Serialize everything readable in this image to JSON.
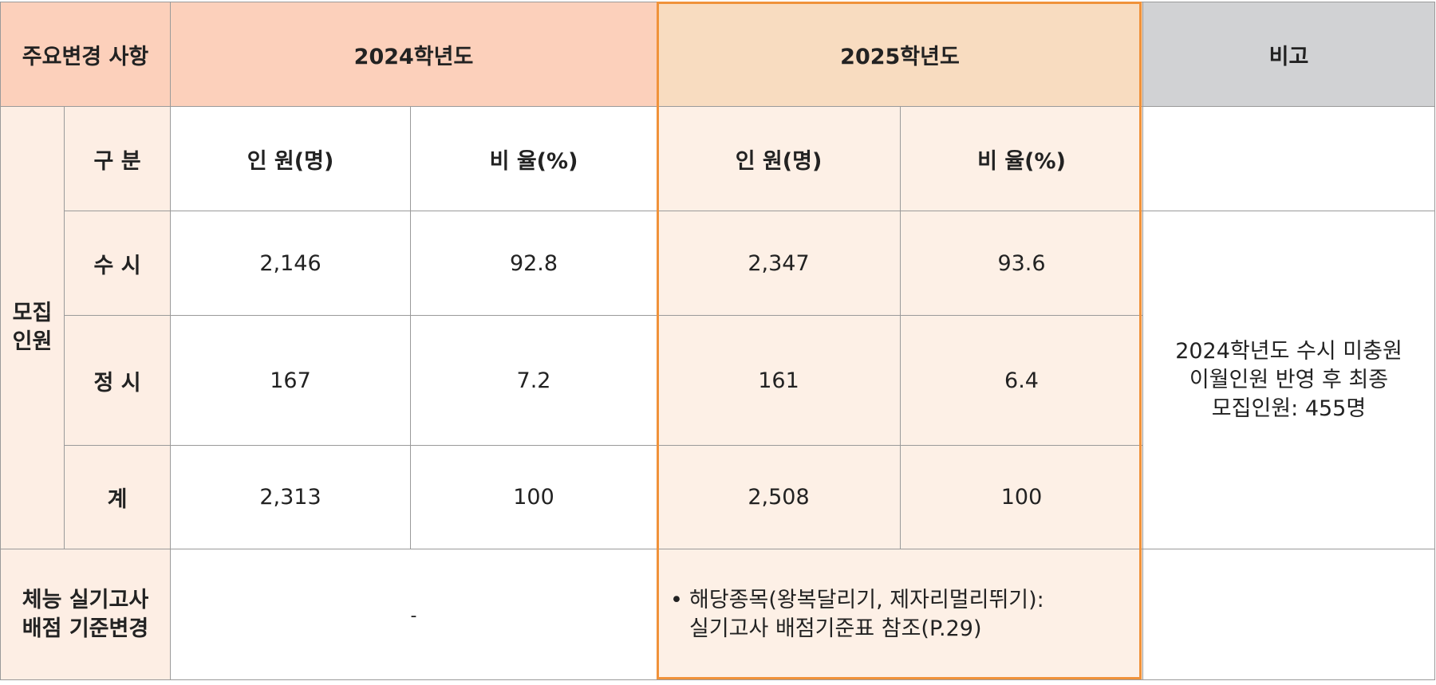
{
  "header": {
    "changes": "주요변경 사항",
    "year2024": "2024학년도",
    "year2025": "2025학년도",
    "remarks": "비고"
  },
  "recruit": {
    "group_label": [
      "모집",
      "인원"
    ],
    "subheader": {
      "category": "구 분",
      "count": "인 원(명)",
      "ratio": "비 율(%)"
    },
    "rows": [
      {
        "label": "수 시",
        "y2024_count": "2,146",
        "y2024_ratio": "92.8",
        "y2025_count": "2,347",
        "y2025_ratio": "93.6"
      },
      {
        "label": "정 시",
        "y2024_count": "167",
        "y2024_ratio": "7.2",
        "y2025_count": "161",
        "y2025_ratio": "6.4"
      },
      {
        "label": "계",
        "y2024_count": "2,313",
        "y2024_ratio": "100",
        "y2025_count": "2,508",
        "y2025_ratio": "100"
      }
    ],
    "note": [
      "2024학년도 수시 미충원",
      "이월인원 반영 후 최종",
      "모집인원: 455명"
    ]
  },
  "fitness": {
    "label": [
      "체능 실기고사",
      "배점 기준변경"
    ],
    "y2024": "-",
    "bullet": "•",
    "y2025": [
      "해당종목(왕복달리기, 제자리멀리뛰기):",
      "실기고사 배점기준표 참조(P.29)"
    ]
  },
  "colors": {
    "header_bg": "#fcd0bb",
    "header_2025_bg": "#f8dcc0",
    "remarks_bg": "#d1d2d4",
    "side_bg": "#fdeee4",
    "highlight_border": "#f0923a"
  }
}
